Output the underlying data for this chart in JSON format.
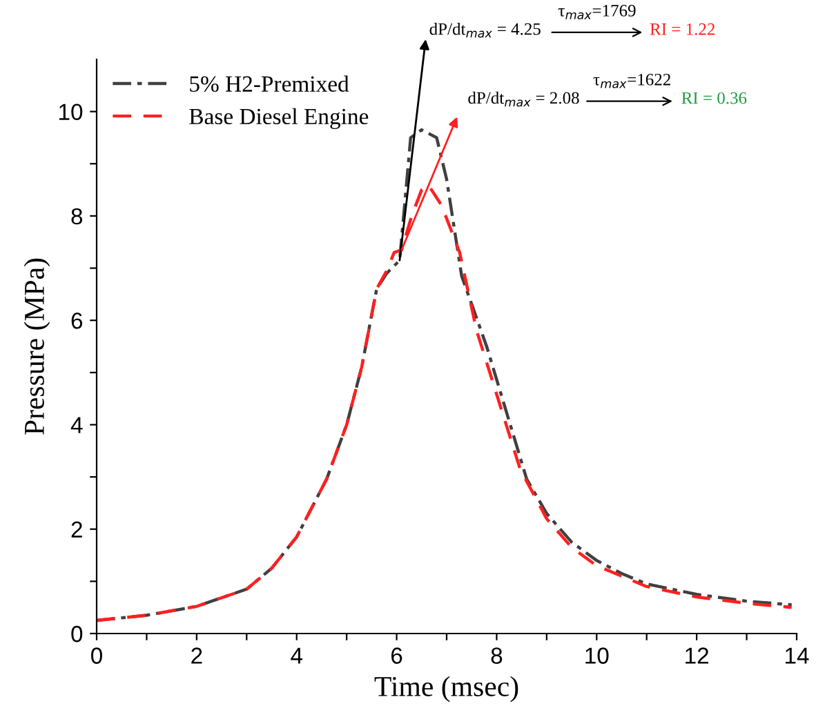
{
  "chart_data": {
    "type": "line",
    "xlabel": "Time (msec)",
    "ylabel": "Pressure (MPa)",
    "xlim": [
      0,
      14
    ],
    "ylim": [
      0,
      11
    ],
    "xticks": [
      0,
      {
        "value": 1,
        "label": null
      },
      2,
      {
        "value": 3,
        "label": null
      },
      4,
      {
        "value": 5,
        "label": null
      },
      6,
      {
        "value": 7,
        "label": null
      },
      8,
      {
        "value": 9,
        "label": null
      },
      10,
      {
        "value": 11,
        "label": null
      },
      12,
      {
        "value": 13,
        "label": null
      },
      14
    ],
    "yticks": [
      0,
      {
        "value": 1,
        "label": null
      },
      2,
      {
        "value": 3,
        "label": null
      },
      4,
      {
        "value": 5,
        "label": null
      },
      6,
      {
        "value": 7,
        "label": null
      },
      8,
      {
        "value": 9,
        "label": null
      },
      10
    ],
    "grid": false,
    "legend": "top left",
    "marker": "none",
    "series": [
      {
        "name": "5% H2-Premixed",
        "color": "#404040",
        "line_style": "dashdot",
        "x": [
          0,
          1,
          2,
          3,
          3.5,
          4,
          4.6,
          5,
          5.3,
          5.6,
          5.8,
          6.06,
          6.28,
          6.5,
          6.8,
          7.0,
          7.3,
          7.8,
          8.6,
          9,
          9.5,
          10,
          10.5,
          11,
          12,
          13,
          13.9
        ],
        "values": [
          0.25,
          0.35,
          0.52,
          0.85,
          1.25,
          1.85,
          2.96,
          4.0,
          5.1,
          6.6,
          6.9,
          7.15,
          9.5,
          9.65,
          9.5,
          8.7,
          6.85,
          5.5,
          2.96,
          2.3,
          1.75,
          1.4,
          1.15,
          0.95,
          0.75,
          0.62,
          0.55
        ]
      },
      {
        "name": "Base Diesel Engine",
        "color": "#ff2020",
        "line_style": "dashed",
        "x": [
          0,
          1,
          2,
          3,
          3.5,
          4,
          4.6,
          5,
          5.3,
          5.6,
          5.8,
          5.95,
          6.1,
          6.3,
          6.5,
          6.63,
          6.9,
          7.26,
          7.6,
          8.47,
          9,
          9.5,
          10,
          10.5,
          11,
          12,
          13,
          13.9
        ],
        "values": [
          0.25,
          0.35,
          0.52,
          0.85,
          1.25,
          1.85,
          2.96,
          4.0,
          5.1,
          6.6,
          6.95,
          7.3,
          7.35,
          8.0,
          8.5,
          8.6,
          8.2,
          7.3,
          5.8,
          3.15,
          2.2,
          1.65,
          1.3,
          1.1,
          0.9,
          0.7,
          0.58,
          0.5
        ]
      }
    ],
    "annotations": [
      {
        "text": "dP/dt$_{max}$ = 4.25",
        "x": 6.06,
        "y": 7.15
      },
      "τ$_{max}$=1769",
      "RI = 1.22",
      {
        "text": "dP/dt$_{max}$ = 2.08",
        "x": 6.1,
        "y": 7.35
      },
      "τ$_{max}$=1622",
      "RI = 0.36"
    ]
  }
}
